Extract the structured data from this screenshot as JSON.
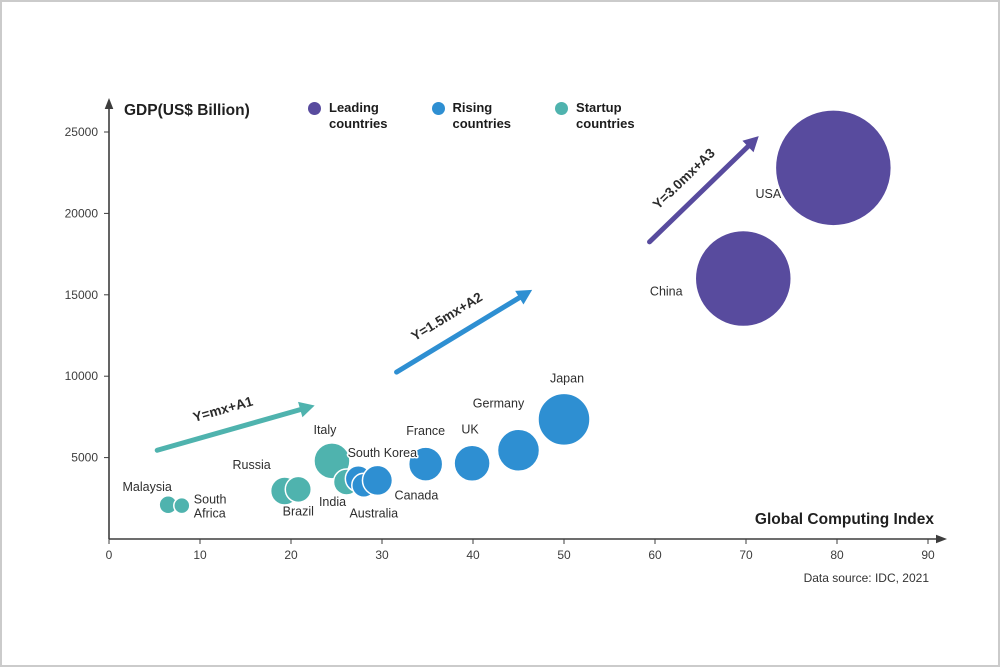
{
  "chart_data": {
    "type": "scatter",
    "title": "",
    "y_axis_title": "GDP(US$ Billion)",
    "x_axis_title": "Global Computing Index",
    "source": "Data source: IDC, 2021",
    "xlim": [
      0,
      90
    ],
    "ylim": [
      0,
      25000
    ],
    "x_ticks": [
      0,
      10,
      20,
      30,
      40,
      50,
      60,
      70,
      80,
      90
    ],
    "y_ticks": [
      5000,
      10000,
      15000,
      20000,
      25000
    ],
    "grid": false,
    "legend_position": "top",
    "legend": [
      {
        "label": "Leading countries",
        "color": "#584b9e"
      },
      {
        "label": "Rising countries",
        "color": "#2e8fd2"
      },
      {
        "label": "Startup countries",
        "color": "#4fb3ae"
      }
    ],
    "series": [
      {
        "name": "Startup countries",
        "color": "#4fb3ae",
        "points": [
          {
            "country": "Malaysia",
            "x": 6.5,
            "y": 2100,
            "r": 9,
            "anchor": "middle",
            "dx": -21,
            "dy": -14
          },
          {
            "country": "South Africa",
            "x": 8,
            "y": 2050,
            "r": 8,
            "anchor": "start",
            "dx": 12,
            "dy": -2,
            "lines": [
              "South",
              "Africa"
            ]
          },
          {
            "country": "Russia",
            "x": 19.3,
            "y": 2950,
            "r": 14,
            "anchor": "middle",
            "dx": -33,
            "dy": -22
          },
          {
            "country": "Brazil",
            "x": 20.8,
            "y": 3050,
            "r": 13,
            "anchor": "middle",
            "dx": 0,
            "dy": 26
          },
          {
            "country": "Italy",
            "x": 24.5,
            "y": 4800,
            "r": 18,
            "anchor": "middle",
            "dx": -7,
            "dy": -27
          },
          {
            "country": "India",
            "x": 26.1,
            "y": 3500,
            "r": 13,
            "anchor": "middle",
            "dx": -14,
            "dy": 24
          }
        ]
      },
      {
        "name": "Rising countries",
        "color": "#2e8fd2",
        "points": [
          {
            "country": "South Korea",
            "x": 27.4,
            "y": 3700,
            "r": 13,
            "anchor": "middle",
            "dx": 24,
            "dy": -22
          },
          {
            "country": "Australia",
            "x": 28,
            "y": 3300,
            "r": 12,
            "anchor": "middle",
            "dx": 10,
            "dy": 32
          },
          {
            "country": "Canada",
            "x": 29.5,
            "y": 3600,
            "r": 15,
            "anchor": "middle",
            "dx": 39,
            "dy": 19
          },
          {
            "country": "France",
            "x": 34.8,
            "y": 4600,
            "r": 17,
            "anchor": "middle",
            "dx": 0,
            "dy": -29
          },
          {
            "country": "UK",
            "x": 39.9,
            "y": 4650,
            "r": 18,
            "anchor": "middle",
            "dx": -2,
            "dy": -30
          },
          {
            "country": "Germany",
            "x": 45,
            "y": 5450,
            "r": 21,
            "anchor": "middle",
            "dx": -20,
            "dy": -43
          },
          {
            "country": "Japan",
            "x": 50,
            "y": 7350,
            "r": 26,
            "anchor": "middle",
            "dx": 3,
            "dy": -37
          }
        ]
      },
      {
        "name": "Leading countries",
        "color": "#584b9e",
        "points": [
          {
            "country": "China",
            "x": 69.7,
            "y": 16000,
            "r": 48,
            "anchor": "middle",
            "dx": -77,
            "dy": 17
          },
          {
            "country": "USA",
            "x": 79.6,
            "y": 22800,
            "r": 58,
            "anchor": "middle",
            "dx": -65,
            "dy": 30
          }
        ]
      }
    ],
    "annotations": [
      {
        "label": "Y=mx+A1",
        "color": "#4fb3ae",
        "x1": 5.3,
        "y1": 5450,
        "x2": 22.6,
        "y2": 8200
      },
      {
        "label": "Y=1.5mx+A2",
        "color": "#2e8fd2",
        "x1": 31.6,
        "y1": 10250,
        "x2": 46.5,
        "y2": 15300
      },
      {
        "label": "Y=3.0mx+A3",
        "color": "#584b9e",
        "x1": 59.4,
        "y1": 18250,
        "x2": 71.4,
        "y2": 24750
      }
    ]
  }
}
